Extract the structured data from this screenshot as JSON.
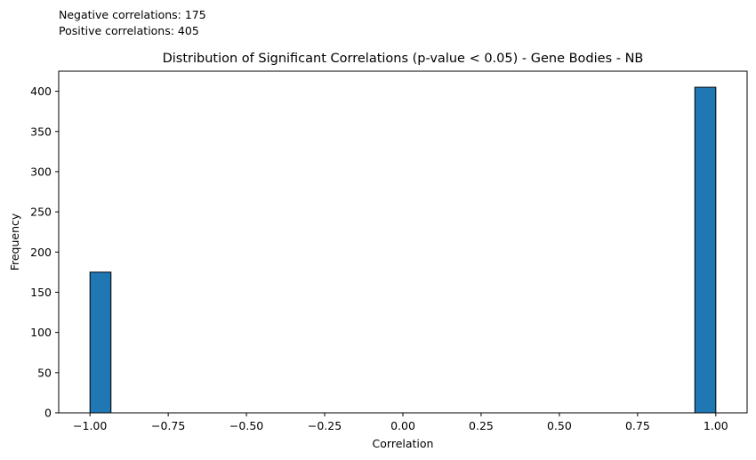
{
  "annotations": {
    "negative": "Negative correlations: 175",
    "positive": "Positive correlations: 405"
  },
  "chart_data": {
    "type": "bar",
    "title": "Distribution of Significant Correlations (p-value < 0.05) - Gene Bodies - NB",
    "xlabel": "Correlation",
    "ylabel": "Frequency",
    "xlim": [
      -1.1,
      1.1
    ],
    "ylim": [
      0,
      425
    ],
    "bins": [
      {
        "x0": -1.0,
        "x1": -0.933,
        "count": 175
      },
      {
        "x0": 0.933,
        "x1": 1.0,
        "count": 405
      }
    ],
    "x_ticks": [
      {
        "value": -1.0,
        "label": "−1.00"
      },
      {
        "value": -0.75,
        "label": "−0.75"
      },
      {
        "value": -0.5,
        "label": "−0.50"
      },
      {
        "value": -0.25,
        "label": "−0.25"
      },
      {
        "value": 0.0,
        "label": "0.00"
      },
      {
        "value": 0.25,
        "label": "0.25"
      },
      {
        "value": 0.5,
        "label": "0.50"
      },
      {
        "value": 0.75,
        "label": "0.75"
      },
      {
        "value": 1.0,
        "label": "1.00"
      }
    ],
    "y_ticks": [
      {
        "value": 0,
        "label": "0"
      },
      {
        "value": 50,
        "label": "50"
      },
      {
        "value": 100,
        "label": "100"
      },
      {
        "value": 150,
        "label": "150"
      },
      {
        "value": 200,
        "label": "200"
      },
      {
        "value": 250,
        "label": "250"
      },
      {
        "value": 300,
        "label": "300"
      },
      {
        "value": 350,
        "label": "350"
      },
      {
        "value": 400,
        "label": "400"
      }
    ],
    "bar_color": "#1f77b4",
    "edge_color": "#000000",
    "grid": false
  }
}
